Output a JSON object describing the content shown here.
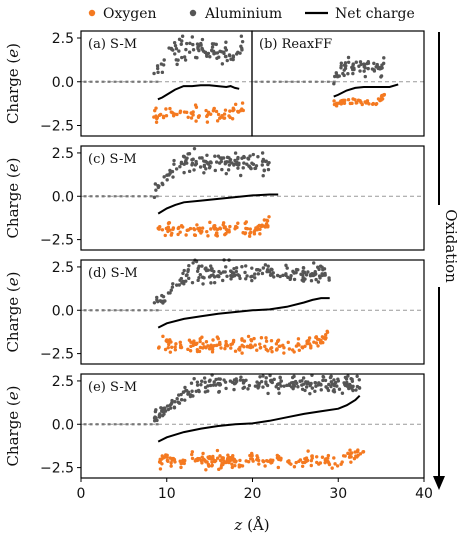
{
  "chart_data": {
    "type": "scatter",
    "legend": {
      "position": "top",
      "entries": [
        {
          "name": "Oxygen",
          "color": "#f47920",
          "marker": "dot"
        },
        {
          "name": "Aluminium",
          "color": "#555555",
          "marker": "dot"
        },
        {
          "name": "Net charge",
          "color": "#000000",
          "marker": "line"
        }
      ]
    },
    "xlabel_prefix": "z",
    "xlabel_suffix": "(Å)",
    "ylabel_prefix": "Charge",
    "ylabel_suffix": "(e)",
    "xlim": [
      0,
      40
    ],
    "ylim": [
      -3.1,
      2.9
    ],
    "xticks": [
      0,
      10,
      20,
      30,
      40
    ],
    "yticks": [
      2.5,
      0.0,
      -2.5
    ],
    "ytick_labels": [
      "2.5",
      "0.0",
      "−2.5"
    ],
    "reference_line_y": 0,
    "side_label": "Oxidation",
    "colors": {
      "oxygen": "#f47920",
      "aluminium": "#555555",
      "net": "#000000",
      "dashed": "#9a9a9a"
    },
    "panels": [
      {
        "label": "(a) S-M",
        "xlim": [
          0,
          20
        ],
        "bulk": {
          "x_end": 9.0
        },
        "oxygen": {
          "x": [
            8.5,
            19.0
          ],
          "y_center": -1.85,
          "y_spread": 0.22,
          "count": 70
        },
        "aluminium": {
          "x": [
            8.5,
            19.0
          ],
          "y_top": 1.8,
          "y_spread": 0.35,
          "count": 90
        },
        "net": {
          "x": [
            9.0,
            9.5,
            10.0,
            11.0,
            12.0,
            13.0,
            14.0,
            15.0,
            16.0,
            17.0,
            17.5,
            18.0,
            18.5
          ],
          "y": [
            -1.0,
            -0.9,
            -0.75,
            -0.45,
            -0.25,
            -0.25,
            -0.2,
            -0.2,
            -0.25,
            -0.3,
            -0.25,
            -0.35,
            -0.4
          ]
        }
      },
      {
        "label": "(b) ReaxFF",
        "xlim": [
          20,
          40
        ],
        "bulk": {
          "x_end": 30.0
        },
        "oxygen": {
          "x": [
            29.5,
            35.5
          ],
          "y_center": -1.15,
          "y_spread": 0.1,
          "count": 45
        },
        "aluminium": {
          "x": [
            29.5,
            35.5
          ],
          "y_top": 0.85,
          "y_spread": 0.25,
          "count": 60
        },
        "net": {
          "x": [
            29.5,
            30.0,
            31.0,
            32.0,
            33.0,
            34.0,
            35.0,
            36.0,
            37.0
          ],
          "y": [
            -0.85,
            -0.75,
            -0.5,
            -0.35,
            -0.3,
            -0.3,
            -0.3,
            -0.3,
            -0.15
          ]
        }
      },
      {
        "label": "(c) S-M",
        "xlim": [
          0,
          40
        ],
        "bulk": {
          "x_end": 9.0
        },
        "oxygen": {
          "x": [
            9.0,
            22.0
          ],
          "y_center": -1.95,
          "y_spread": 0.2,
          "count": 110
        },
        "aluminium": {
          "x": [
            8.5,
            22.0
          ],
          "y_top": 1.95,
          "y_spread": 0.3,
          "count": 130
        },
        "net": {
          "x": [
            9.0,
            10.0,
            11.0,
            12.0,
            14.0,
            16.0,
            18.0,
            20.0,
            22.0,
            23.0
          ],
          "y": [
            -1.0,
            -0.7,
            -0.5,
            -0.35,
            -0.25,
            -0.15,
            -0.05,
            0.05,
            0.1,
            0.1
          ]
        }
      },
      {
        "label": "(d) S-M",
        "xlim": [
          0,
          40
        ],
        "bulk": {
          "x_end": 9.0
        },
        "oxygen": {
          "x": [
            9.0,
            29.0
          ],
          "y_center": -2.0,
          "y_spread": 0.2,
          "count": 160
        },
        "aluminium": {
          "x": [
            8.5,
            29.0
          ],
          "y_top": 2.15,
          "y_spread": 0.3,
          "count": 180
        },
        "net": {
          "x": [
            9.0,
            10.0,
            12.0,
            14.0,
            16.0,
            18.0,
            20.0,
            22.0,
            24.0,
            26.0,
            27.0,
            28.0,
            29.0
          ],
          "y": [
            -1.0,
            -0.75,
            -0.5,
            -0.35,
            -0.2,
            -0.1,
            0.0,
            0.05,
            0.2,
            0.45,
            0.6,
            0.7,
            0.7
          ]
        }
      },
      {
        "label": "(e) S-M",
        "xlim": [
          0,
          40
        ],
        "bulk": {
          "x_end": 9.0
        },
        "oxygen": {
          "x": [
            9.0,
            33.0
          ],
          "y_center": -2.1,
          "y_spread": 0.2,
          "count": 200
        },
        "aluminium": {
          "x": [
            8.5,
            32.5
          ],
          "y_top": 2.35,
          "y_spread": 0.28,
          "count": 230
        },
        "net": {
          "x": [
            9.0,
            10.0,
            12.0,
            14.0,
            16.0,
            18.0,
            20.0,
            22.0,
            24.0,
            26.0,
            28.0,
            30.0,
            31.0,
            32.0,
            32.5
          ],
          "y": [
            -1.0,
            -0.75,
            -0.45,
            -0.25,
            -0.1,
            0.0,
            0.05,
            0.2,
            0.4,
            0.6,
            0.75,
            0.9,
            1.1,
            1.4,
            1.65
          ]
        }
      }
    ]
  }
}
